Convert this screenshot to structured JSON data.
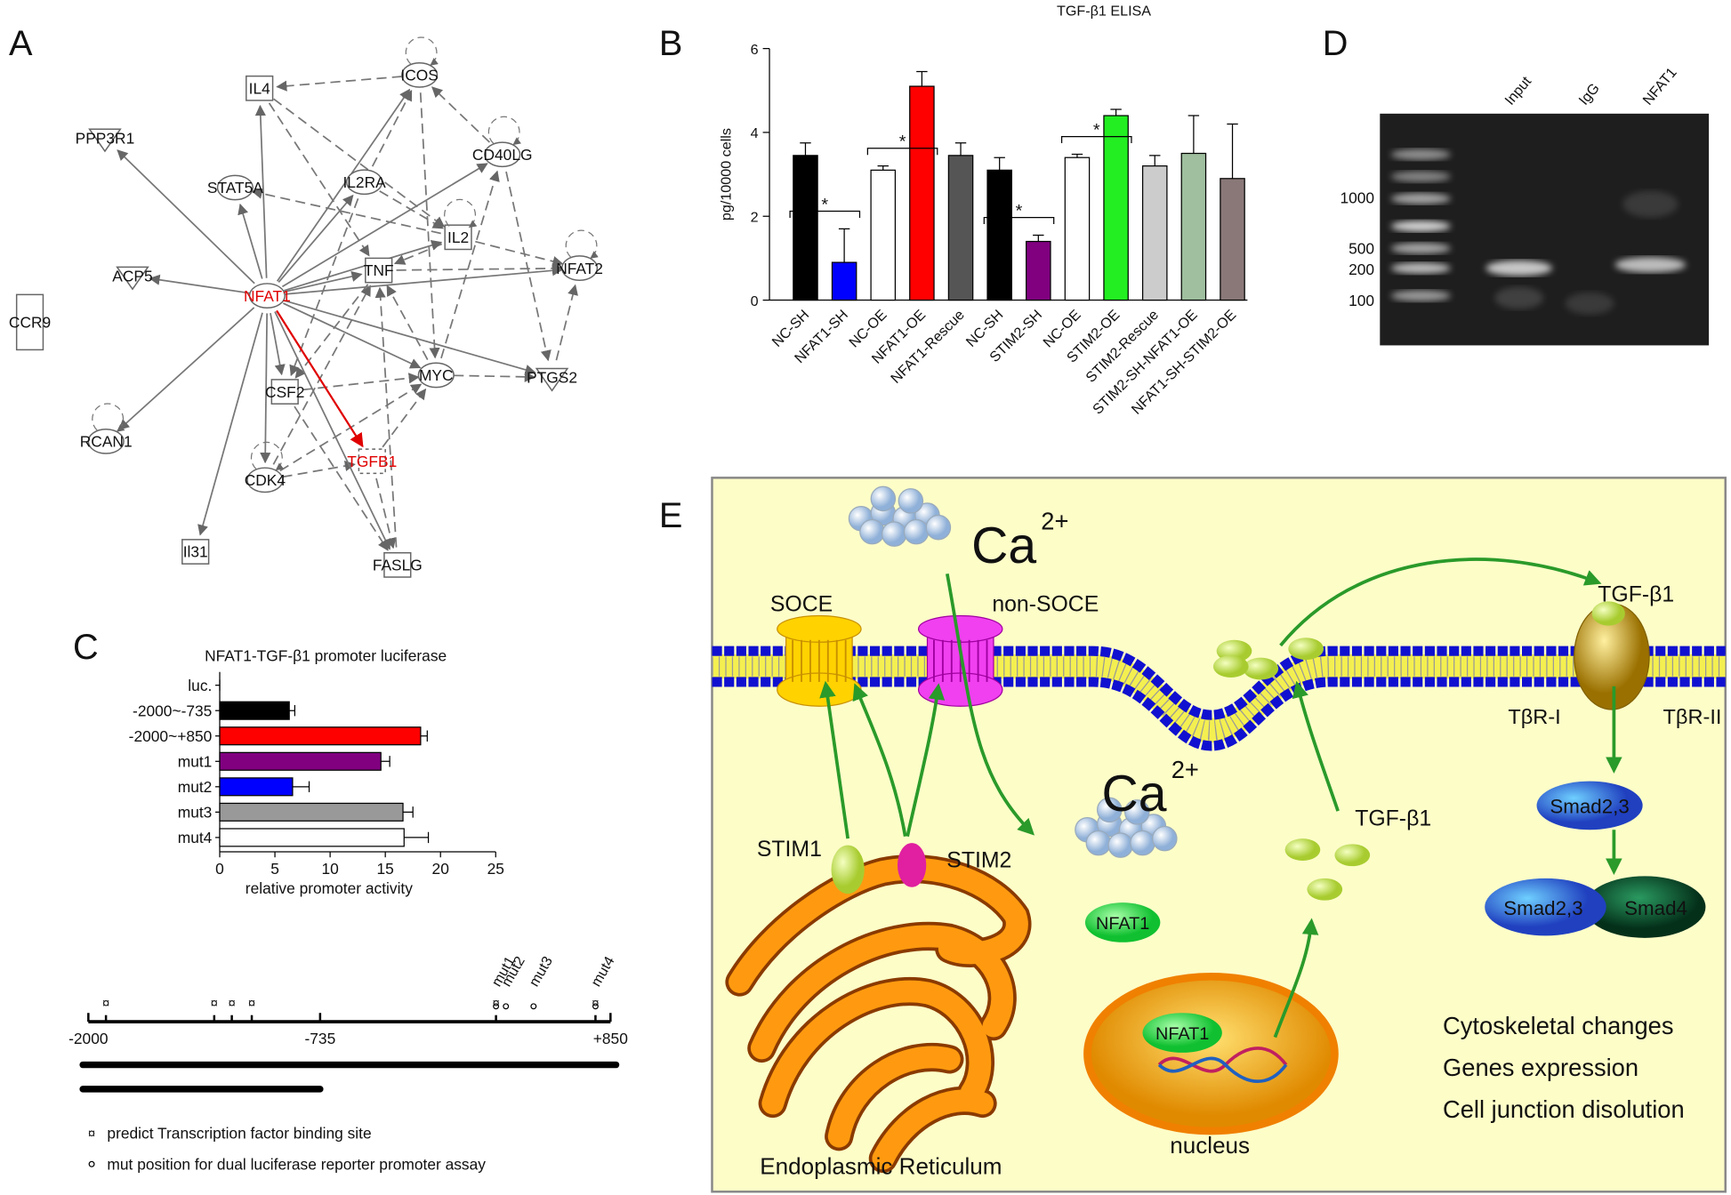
{
  "network": {
    "label": "A",
    "nodes": [
      {
        "label": "IL4",
        "color": "#111"
      },
      {
        "label": "ICOS",
        "color": "#111"
      },
      {
        "label": "PPP3R1",
        "color": "#111"
      },
      {
        "label": "CD40LG",
        "color": "#111"
      },
      {
        "label": "STAT5A",
        "color": "#111"
      },
      {
        "label": "IL2RA",
        "color": "#111"
      },
      {
        "label": "IL2",
        "color": "#111"
      },
      {
        "label": "ACP5",
        "color": "#111"
      },
      {
        "label": "NFAT1",
        "color": "#e00000"
      },
      {
        "label": "TNF",
        "color": "#111"
      },
      {
        "label": "NFAT2",
        "color": "#111"
      },
      {
        "label": "CCR9",
        "color": "#111"
      },
      {
        "label": "MYC",
        "color": "#111"
      },
      {
        "label": "CSF2",
        "color": "#111"
      },
      {
        "label": "PTGS2",
        "color": "#111"
      },
      {
        "label": "RCAN1",
        "color": "#111"
      },
      {
        "label": "TGFB1",
        "color": "#e00000"
      },
      {
        "label": "CDK4",
        "color": "#111"
      },
      {
        "label": "Il31",
        "color": "#111"
      },
      {
        "label": "FASLG",
        "color": "#111"
      }
    ]
  },
  "chart_data": [
    {
      "type": "bar",
      "panel": "B",
      "title": "TGF-β1 ELISA",
      "y_label": "pg/10000 cells",
      "categories": [
        "NC-SH",
        "NFAT1-SH",
        "NC-OE",
        "NFAT1-OE",
        "NFAT1-Rescue",
        "NC-SH",
        "STIM2-SH",
        "NC-OE",
        "STIM2-OE",
        "STIM2-Rescue",
        "STIM2-SH-NFAT1-OE",
        "NFAT1-SH-STIM2-OE"
      ],
      "values": [
        3.45,
        0.9,
        3.1,
        5.1,
        3.45,
        3.1,
        1.4,
        3.4,
        4.4,
        3.2,
        3.5,
        2.9
      ],
      "errors": [
        0.3,
        0.8,
        0.1,
        0.35,
        0.3,
        0.3,
        0.15,
        0.08,
        0.15,
        0.25,
        0.9,
        1.3
      ],
      "colors": [
        "#000000",
        "#0000ff",
        "#ffffff",
        "#ff0000",
        "#555555",
        "#000000",
        "#800080",
        "#ffffff",
        "#22ee22",
        "#cccccc",
        "#9fbf9f",
        "#8a7878"
      ],
      "ylim": [
        0,
        6
      ],
      "yticks": [
        0,
        2,
        4,
        6
      ],
      "annotations": [
        "*",
        "*",
        "*",
        "*"
      ]
    },
    {
      "type": "hbar",
      "panel": "C",
      "title": "NFAT1-TGF-β1 promoter luciferase",
      "x_label": "relative promoter activity",
      "categories": [
        "luc.",
        "-2000~-735",
        "-2000~+850",
        "mut1",
        "mut2",
        "mut3",
        "mut4"
      ],
      "values": [
        0,
        6.3,
        18.2,
        14.6,
        6.6,
        16.6,
        16.7
      ],
      "errors": [
        0,
        0.5,
        0.6,
        0.8,
        1.5,
        0.9,
        2.2
      ],
      "colors": [
        "#000000",
        "#000000",
        "#ff0000",
        "#800080",
        "#0000ff",
        "#999999",
        "#ffffff"
      ],
      "xlim": [
        0,
        25
      ],
      "xticks": [
        0,
        5,
        10,
        15,
        20,
        25
      ]
    },
    {
      "type": "map",
      "xlim": [
        -2000,
        850
      ],
      "xticks": [
        -2000,
        -735,
        {
          "value": 850,
          "label": "+850"
        }
      ],
      "sites": [
        -1904,
        -1313,
        -1217,
        -1108,
        225,
        768
      ],
      "site_symbol": "¤",
      "mutations": {
        "names": [
          "mut1",
          "mut2",
          "mut3",
          "mut4"
        ],
        "positions": [
          225,
          279,
          430,
          768
        ]
      },
      "legend": [
        "predict Transcription factor binding site",
        "mut position for dual luciferase reporter promoter assay"
      ]
    }
  ],
  "gel": {
    "label": "D",
    "lanes": [
      "Input",
      "IgG",
      "NFAT1"
    ],
    "markers": [
      "1000",
      "500",
      "200",
      "100"
    ]
  },
  "pathway": {
    "label": "E",
    "calcium": [
      {
        "text": "Ca",
        "superscript": "2+"
      },
      {
        "text": "Ca",
        "superscript": "2+"
      }
    ],
    "channels": [
      "SOCE",
      "non-SOCE"
    ],
    "ligands": [
      "TGF-β1",
      "TGF-β1"
    ],
    "receptors": [
      "TβR-I",
      "TβR-II"
    ],
    "smads": [
      "Smad2,3",
      "Smad2,3",
      "Smad4"
    ],
    "stims": [
      "STIM1",
      "STIM2"
    ],
    "nfat": [
      "NFAT1",
      "NFAT1"
    ],
    "outcomes": [
      "Cytoskeletal changes",
      "Genes expression",
      "Cell junction disolution"
    ],
    "er": "Endoplasmic Reticulum",
    "nucleus": "nucleus"
  }
}
